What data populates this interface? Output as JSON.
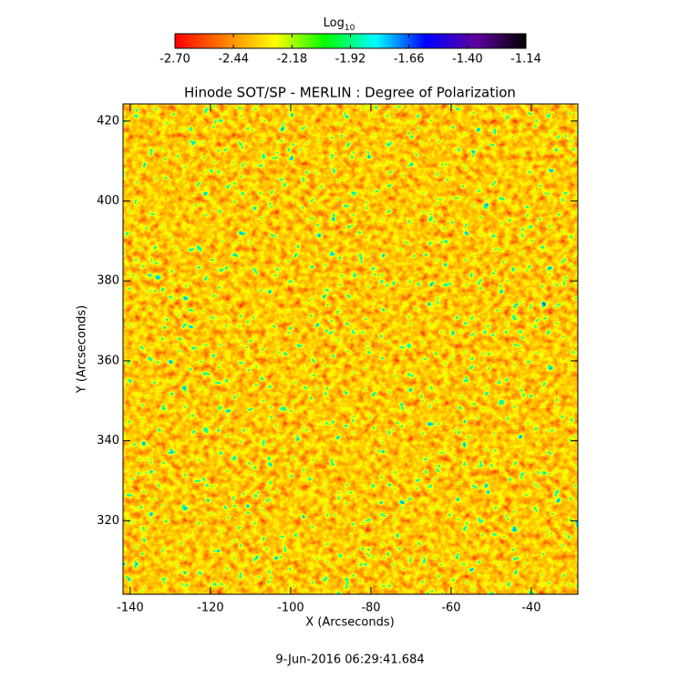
{
  "chart_data": {
    "type": "image",
    "title": "Hinode SOT/SP - MERLIN : Degree of Polarization",
    "xlabel": "X (Arcseconds)",
    "ylabel": "Y (Arcseconds)",
    "xlim": [
      -141.8,
      -28.4
    ],
    "ylim": [
      301.6,
      424.3
    ],
    "xticks": [
      -140,
      -120,
      -100,
      -80,
      -60,
      -40
    ],
    "yticks": [
      320,
      340,
      360,
      380,
      400,
      420
    ],
    "colorbar": {
      "title": "Log",
      "title_subscript": "10",
      "lim": [
        -2.7,
        -1.14
      ],
      "ticks": [
        {
          "value": -2.7,
          "label": "-2.70"
        },
        {
          "value": -2.44,
          "label": "-2.44"
        },
        {
          "value": -2.18,
          "label": "-2.18"
        },
        {
          "value": -1.92,
          "label": "-1.92"
        },
        {
          "value": -1.66,
          "label": "-1.66"
        },
        {
          "value": -1.4,
          "label": "-1.40"
        },
        {
          "value": -1.14,
          "label": "-1.14"
        }
      ],
      "colors": [
        "#ff0000",
        "#ff8000",
        "#ffff00",
        "#00ff00",
        "#00ffff",
        "#0000ff",
        "#6000a0",
        "#000000"
      ]
    },
    "date": "9-Jun-2016 06:29:41.684"
  }
}
